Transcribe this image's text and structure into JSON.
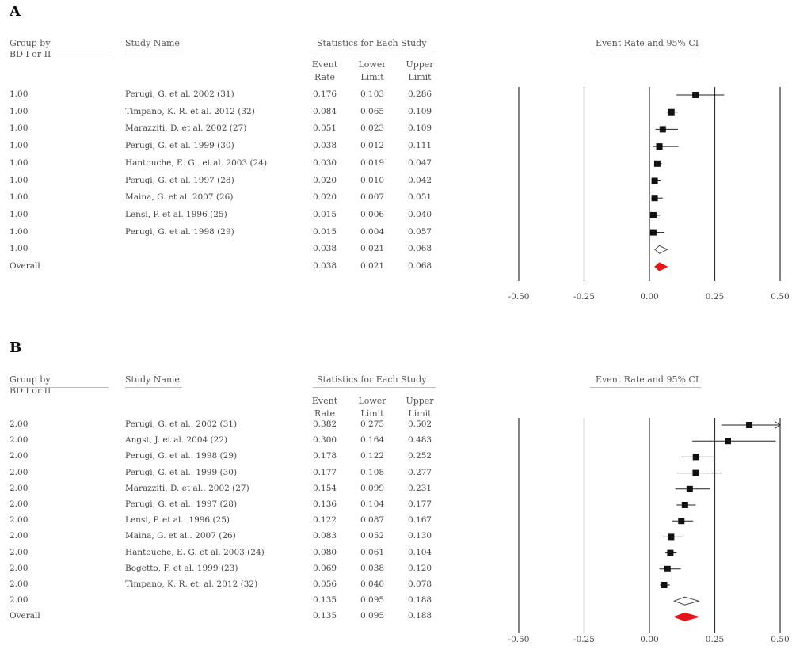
{
  "chart_data": [
    {
      "type": "forest",
      "panel_label": "A",
      "headers": {
        "group": "Group by BD I or II",
        "study": "Study Name",
        "stats": "Statistics for Each Study",
        "plot": "Event Rate and 95% CI",
        "event_rate": "Event Rate",
        "lower": "Lower Limit",
        "upper": "Upper Limit"
      },
      "xlim": [
        -0.5,
        0.5
      ],
      "xticks": [
        "-0.50",
        "-0.25",
        "0.00",
        "0.25",
        "0.50"
      ],
      "rows": [
        {
          "group": "1.00",
          "name": "Perugi, G. et al. 2002 (31)",
          "er": "0.176",
          "ll": "0.103",
          "ul": "0.286",
          "kind": "study"
        },
        {
          "group": "1.00",
          "name": "Timpano, K. R. et al. 2012 (32)",
          "er": "0.084",
          "ll": "0.065",
          "ul": "0.109",
          "kind": "study"
        },
        {
          "group": "1.00",
          "name": "Marazziti, D. et al. 2002 (27)",
          "er": "0.051",
          "ll": "0.023",
          "ul": "0.109",
          "kind": "study"
        },
        {
          "group": "1.00",
          "name": "Perugi, G. et al. 1999 (30)",
          "er": "0.038",
          "ll": "0.012",
          "ul": "0.111",
          "kind": "study"
        },
        {
          "group": "1.00",
          "name": "Hantouche, E. G.. et al. 2003 (24)",
          "er": "0.030",
          "ll": "0.019",
          "ul": "0.047",
          "kind": "study"
        },
        {
          "group": "1.00",
          "name": "Perugi, G. et al. 1997 (28)",
          "er": "0.020",
          "ll": "0.010",
          "ul": "0.042",
          "kind": "study"
        },
        {
          "group": "1.00",
          "name": "Maina, G. et al. 2007 (26)",
          "er": "0.020",
          "ll": "0.007",
          "ul": "0.051",
          "kind": "study"
        },
        {
          "group": "1.00",
          "name": "Lensi, P. et al. 1996 (25)",
          "er": "0.015",
          "ll": "0.006",
          "ul": "0.040",
          "kind": "study"
        },
        {
          "group": "1.00",
          "name": "Perugi, G. et al. 1998 (29)",
          "er": "0.015",
          "ll": "0.004",
          "ul": "0.057",
          "kind": "study"
        },
        {
          "group": "1.00",
          "name": "",
          "er": "0.038",
          "ll": "0.021",
          "ul": "0.068",
          "kind": "subgroup"
        },
        {
          "group": "Overall",
          "name": "",
          "er": "0.038",
          "ll": "0.021",
          "ul": "0.068",
          "kind": "overall"
        }
      ]
    },
    {
      "type": "forest",
      "panel_label": "B",
      "headers": {
        "group": "Group by BD I or II",
        "study": "Study Name",
        "stats": "Statistics for Each Study",
        "plot": "Event Rate and 95% CI",
        "event_rate": "Event Rate",
        "lower": "Lower Limit",
        "upper": "Upper Limit"
      },
      "xlim": [
        -0.5,
        0.5
      ],
      "xticks": [
        "-0.50",
        "-0.25",
        "0.00",
        "0.25",
        "0.50"
      ],
      "rows": [
        {
          "group": "2.00",
          "name": "Perugi, G. et al.. 2002 (31)",
          "er": "0.382",
          "ll": "0.275",
          "ul": "0.502",
          "kind": "study"
        },
        {
          "group": "2.00",
          "name": "Angst, J. et al. 2004 (22)",
          "er": "0.300",
          "ll": "0.164",
          "ul": "0.483",
          "kind": "study"
        },
        {
          "group": "2.00",
          "name": "Perugi, G. et al.. 1998 (29)",
          "er": "0.178",
          "ll": "0.122",
          "ul": "0.252",
          "kind": "study"
        },
        {
          "group": "2.00",
          "name": "Perugi, G. et al.. 1999 (30)",
          "er": "0.177",
          "ll": "0.108",
          "ul": "0.277",
          "kind": "study"
        },
        {
          "group": "2.00",
          "name": "Marazziti, D. et al.. 2002 (27)",
          "er": "0.154",
          "ll": "0.099",
          "ul": "0.231",
          "kind": "study"
        },
        {
          "group": "2.00",
          "name": "Perugi, G. et al.. 1997 (28)",
          "er": "0.136",
          "ll": "0.104",
          "ul": "0.177",
          "kind": "study"
        },
        {
          "group": "2.00",
          "name": "Lensi, P. et al.. 1996 (25)",
          "er": "0.122",
          "ll": "0.087",
          "ul": "0.167",
          "kind": "study"
        },
        {
          "group": "2.00",
          "name": "Maina, G. et al.. 2007 (26)",
          "er": "0.083",
          "ll": "0.052",
          "ul": "0.130",
          "kind": "study"
        },
        {
          "group": "2.00",
          "name": "Hantouche, E. G. et al. 2003 (24)",
          "er": "0.080",
          "ll": "0.061",
          "ul": "0.104",
          "kind": "study"
        },
        {
          "group": "2.00",
          "name": "Bogetto, F. et al. 1999 (23)",
          "er": "0.069",
          "ll": "0.038",
          "ul": "0.120",
          "kind": "study"
        },
        {
          "group": "2.00",
          "name": "Timpano, K. R. et. al. 2012 (32)",
          "er": "0.056",
          "ll": "0.040",
          "ul": "0.078",
          "kind": "study"
        },
        {
          "group": "2.00",
          "name": "",
          "er": "0.135",
          "ll": "0.095",
          "ul": "0.188",
          "kind": "subgroup"
        },
        {
          "group": "Overall",
          "name": "",
          "er": "0.135",
          "ll": "0.095",
          "ul": "0.188",
          "kind": "overall"
        }
      ]
    }
  ]
}
